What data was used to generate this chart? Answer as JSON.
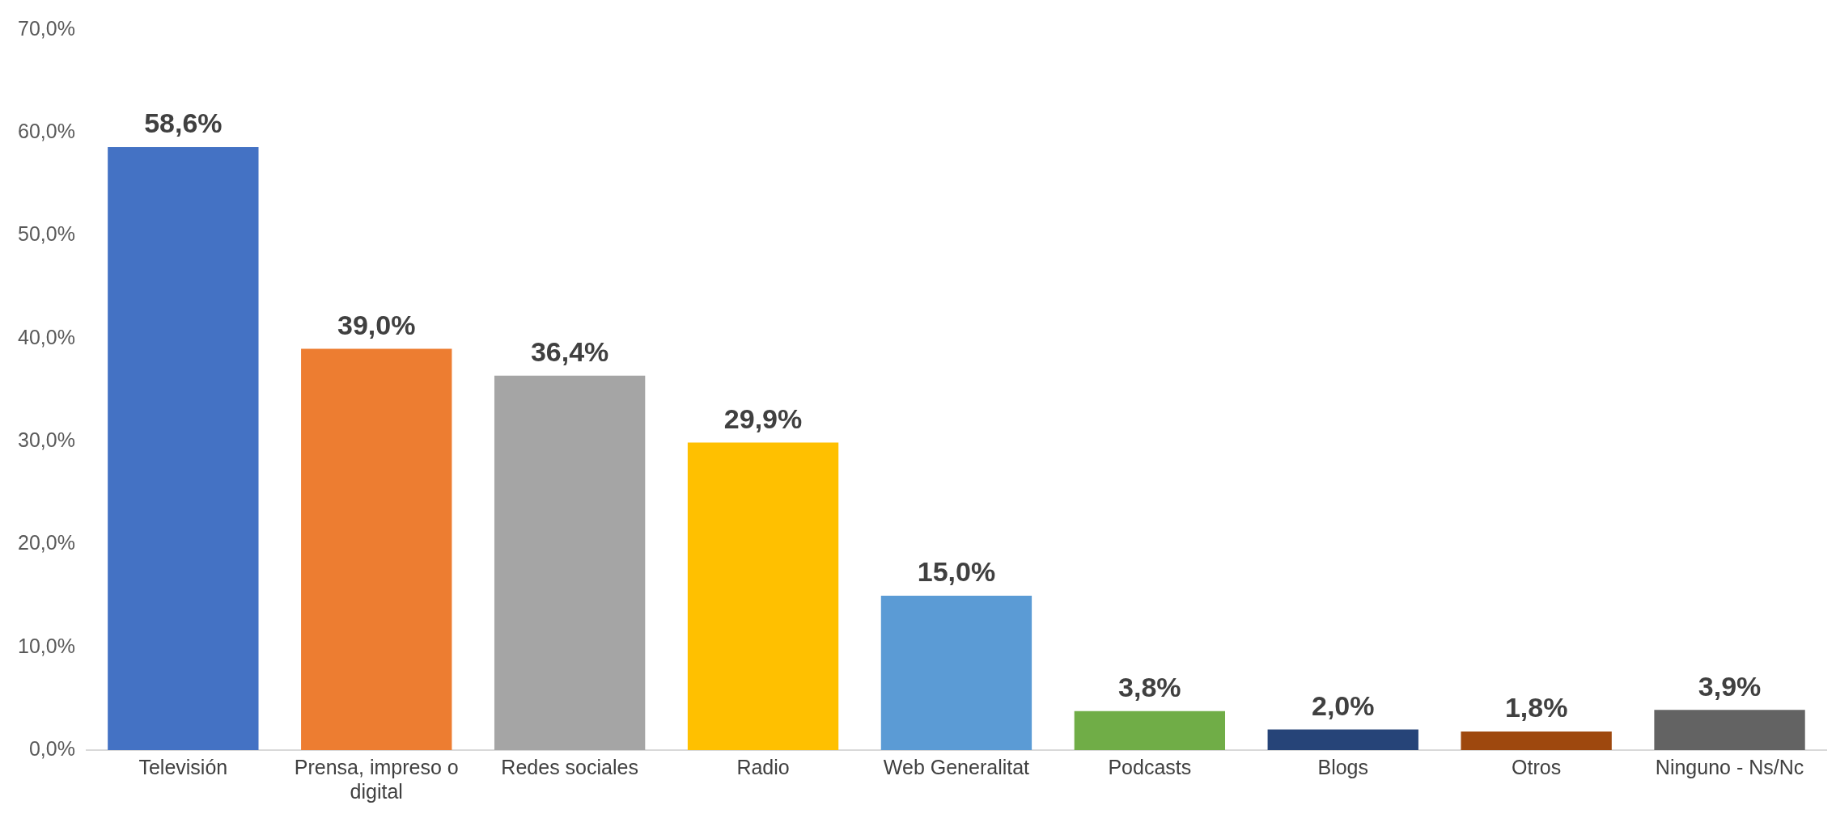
{
  "chart_data": {
    "type": "bar",
    "categories": [
      "Televisión",
      "Prensa, impreso o digital",
      "Redes sociales",
      "Radio",
      "Web Generalitat",
      "Podcasts",
      "Blogs",
      "Otros",
      "Ninguno - Ns/Nc"
    ],
    "values": [
      58.6,
      39.0,
      36.4,
      29.9,
      15.0,
      3.8,
      2.0,
      1.8,
      3.9
    ],
    "colors": [
      "#4472c4",
      "#ed7d31",
      "#a5a5a5",
      "#ffc000",
      "#5b9bd5",
      "#70ad47",
      "#264478",
      "#9e480e",
      "#636363"
    ],
    "value_labels": [
      "58,6%",
      "39,0%",
      "36,4%",
      "29,9%",
      "15,0%",
      "3,8%",
      "2,0%",
      "1,8%",
      "3,9%"
    ],
    "ylim": [
      0,
      70
    ],
    "yticks": [
      {
        "value": 0,
        "label": "0,0%"
      },
      {
        "value": 10,
        "label": "10,0%"
      },
      {
        "value": 20,
        "label": "20,0%"
      },
      {
        "value": 30,
        "label": "30,0%"
      },
      {
        "value": 40,
        "label": "40,0%"
      },
      {
        "value": 50,
        "label": "50,0%"
      },
      {
        "value": 60,
        "label": "60,0%"
      },
      {
        "value": 70,
        "label": "70,0%"
      }
    ],
    "grid": false,
    "legend": false
  }
}
